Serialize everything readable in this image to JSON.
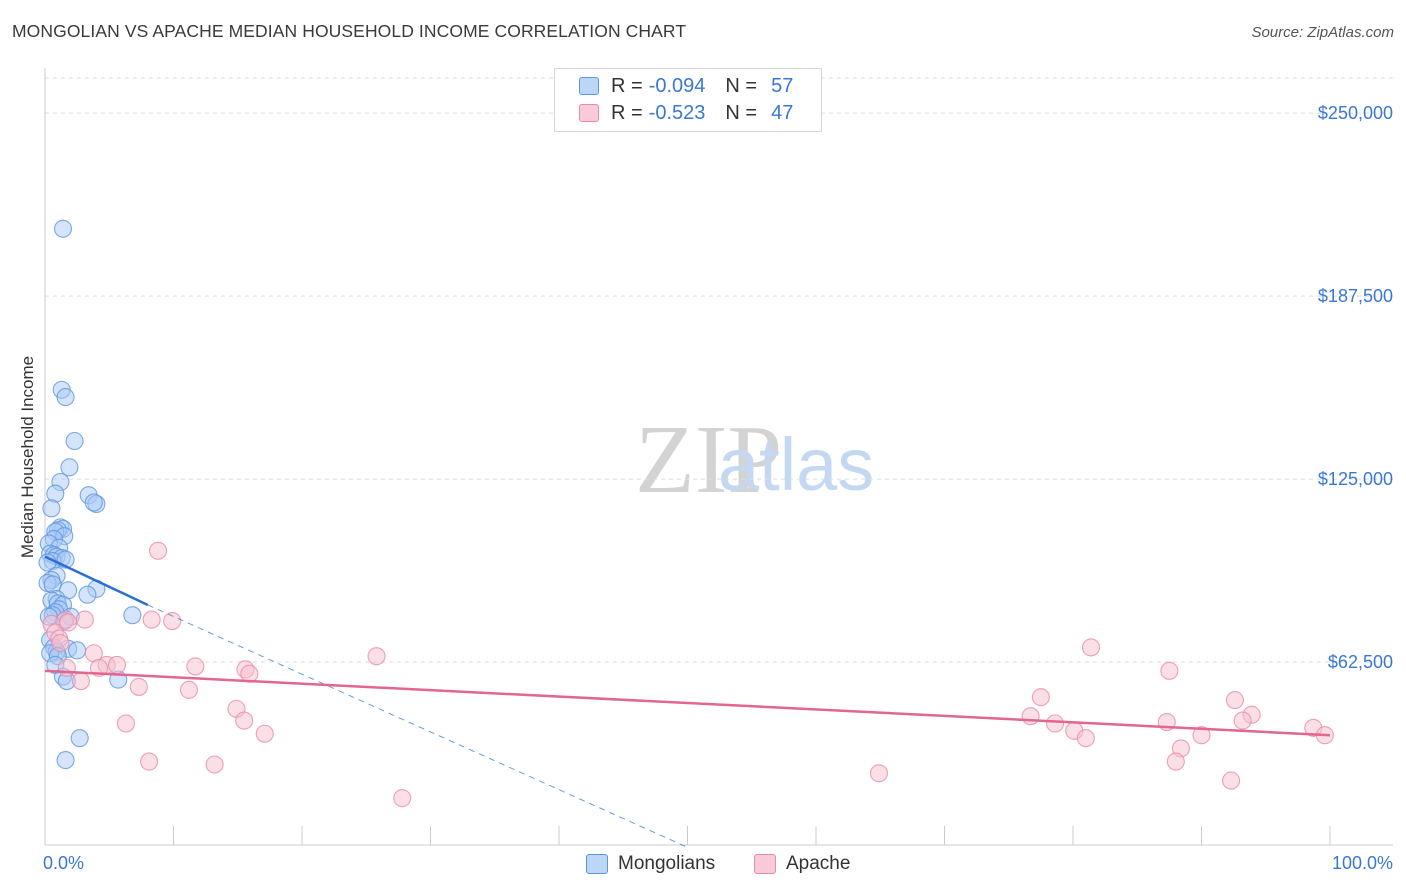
{
  "title": "MONGOLIAN VS APACHE MEDIAN HOUSEHOLD INCOME CORRELATION CHART",
  "source": "Source: ZipAtlas.com",
  "watermark": {
    "zip": "ZIP",
    "atlas": "atlas"
  },
  "legend": {
    "rows": [
      {
        "r_label": "R =",
        "r_value": "-0.094",
        "n_label": "N =",
        "n_value": "57"
      },
      {
        "r_label": "R =",
        "r_value": "-0.523",
        "n_label": "N =",
        "n_value": "47"
      }
    ]
  },
  "bottom_legend": {
    "mongolians": "Mongolians",
    "apache": "Apache"
  },
  "colors": {
    "mongolian_fill": "#a9c9f5",
    "mongolian_stroke": "#5d95e0",
    "mongolian_line": "#2a6fd1",
    "apache_fill": "#f7bfd0",
    "apache_stroke": "#e98aa8",
    "apache_line": "#e2668f",
    "tick_label": "#3a78d4",
    "grid": "#dddddd"
  },
  "chart_data": {
    "type": "scatter",
    "title": "MONGOLIAN VS APACHE MEDIAN HOUSEHOLD INCOME CORRELATION CHART",
    "xlabel": "",
    "ylabel": "Median Household Income",
    "x_tick_labels": [
      "0.0%",
      "100.0%"
    ],
    "y_tick_labels": [
      "$62,500",
      "$125,000",
      "$187,500",
      "$250,000"
    ],
    "y_ticks": [
      62500,
      125000,
      187500,
      250000
    ],
    "xlim": [
      0,
      100
    ],
    "ylim": [
      0,
      262000
    ],
    "grid": true,
    "legend_position": "top-center",
    "series": [
      {
        "name": "Mongolians",
        "r": -0.094,
        "n": 57,
        "trend": {
          "x": [
            0,
            8
          ],
          "y": [
            98500,
            82000
          ]
        },
        "trend_extension": {
          "x": [
            8,
            50
          ],
          "y": [
            82000,
            -800
          ]
        },
        "points": [
          [
            1.4,
            210500
          ],
          [
            1.3,
            155500
          ],
          [
            1.6,
            153000
          ],
          [
            2.3,
            138000
          ],
          [
            1.9,
            129000
          ],
          [
            1.2,
            124000
          ],
          [
            0.8,
            120000
          ],
          [
            3.4,
            119500
          ],
          [
            4.0,
            116500
          ],
          [
            3.8,
            117000
          ],
          [
            0.5,
            115000
          ],
          [
            1.2,
            108500
          ],
          [
            1.4,
            108000
          ],
          [
            1.0,
            107500
          ],
          [
            0.8,
            107000
          ],
          [
            1.5,
            105500
          ],
          [
            0.7,
            104500
          ],
          [
            0.3,
            103000
          ],
          [
            1.1,
            101500
          ],
          [
            0.4,
            99500
          ],
          [
            0.7,
            99000
          ],
          [
            0.9,
            98500
          ],
          [
            1.3,
            98000
          ],
          [
            0.6,
            97000
          ],
          [
            0.2,
            96500
          ],
          [
            1.6,
            97500
          ],
          [
            0.9,
            92000
          ],
          [
            0.5,
            90500
          ],
          [
            0.2,
            89500
          ],
          [
            0.6,
            89000
          ],
          [
            1.8,
            87000
          ],
          [
            4.0,
            87500
          ],
          [
            3.3,
            85500
          ],
          [
            0.9,
            84000
          ],
          [
            0.5,
            83500
          ],
          [
            1.0,
            82500
          ],
          [
            1.4,
            82000
          ],
          [
            1.1,
            80500
          ],
          [
            0.8,
            79500
          ],
          [
            0.6,
            78500
          ],
          [
            0.3,
            78000
          ],
          [
            2.0,
            78000
          ],
          [
            6.8,
            78500
          ],
          [
            1.5,
            76500
          ],
          [
            0.4,
            70000
          ],
          [
            0.7,
            67500
          ],
          [
            1.8,
            67000
          ],
          [
            2.5,
            66500
          ],
          [
            0.9,
            66000
          ],
          [
            0.4,
            65500
          ],
          [
            1.0,
            64500
          ],
          [
            0.8,
            61500
          ],
          [
            1.4,
            57500
          ],
          [
            5.7,
            56500
          ],
          [
            1.7,
            56000
          ],
          [
            2.7,
            36500
          ],
          [
            1.6,
            29000
          ]
        ]
      },
      {
        "name": "Apache",
        "r": -0.523,
        "n": 47,
        "trend": {
          "x": [
            0,
            100
          ],
          "y": [
            59500,
            37500
          ]
        },
        "points": [
          [
            8.8,
            100500
          ],
          [
            3.1,
            77000
          ],
          [
            8.3,
            77000
          ],
          [
            9.9,
            76500
          ],
          [
            1.6,
            77000
          ],
          [
            1.8,
            76000
          ],
          [
            0.5,
            75500
          ],
          [
            0.8,
            72500
          ],
          [
            1.1,
            70500
          ],
          [
            1.2,
            69000
          ],
          [
            3.8,
            65500
          ],
          [
            25.8,
            64500
          ],
          [
            4.8,
            61500
          ],
          [
            5.6,
            61500
          ],
          [
            4.2,
            60500
          ],
          [
            1.7,
            60500
          ],
          [
            11.7,
            61000
          ],
          [
            15.6,
            60000
          ],
          [
            15.9,
            58500
          ],
          [
            2.8,
            56000
          ],
          [
            7.3,
            54000
          ],
          [
            11.2,
            53000
          ],
          [
            14.9,
            46500
          ],
          [
            15.5,
            42500
          ],
          [
            6.3,
            41500
          ],
          [
            17.1,
            38000
          ],
          [
            8.1,
            28500
          ],
          [
            13.2,
            27500
          ],
          [
            27.8,
            16000
          ],
          [
            81.4,
            67500
          ],
          [
            87.5,
            59500
          ],
          [
            77.5,
            50500
          ],
          [
            92.6,
            49500
          ],
          [
            93.9,
            44500
          ],
          [
            76.7,
            44000
          ],
          [
            93.2,
            42500
          ],
          [
            78.6,
            41500
          ],
          [
            87.3,
            42000
          ],
          [
            98.7,
            40000
          ],
          [
            80.1,
            39000
          ],
          [
            81.0,
            36500
          ],
          [
            90.0,
            37500
          ],
          [
            99.6,
            37500
          ],
          [
            88.4,
            33000
          ],
          [
            88.0,
            28500
          ],
          [
            64.9,
            24500
          ],
          [
            92.3,
            22000
          ]
        ]
      }
    ]
  }
}
